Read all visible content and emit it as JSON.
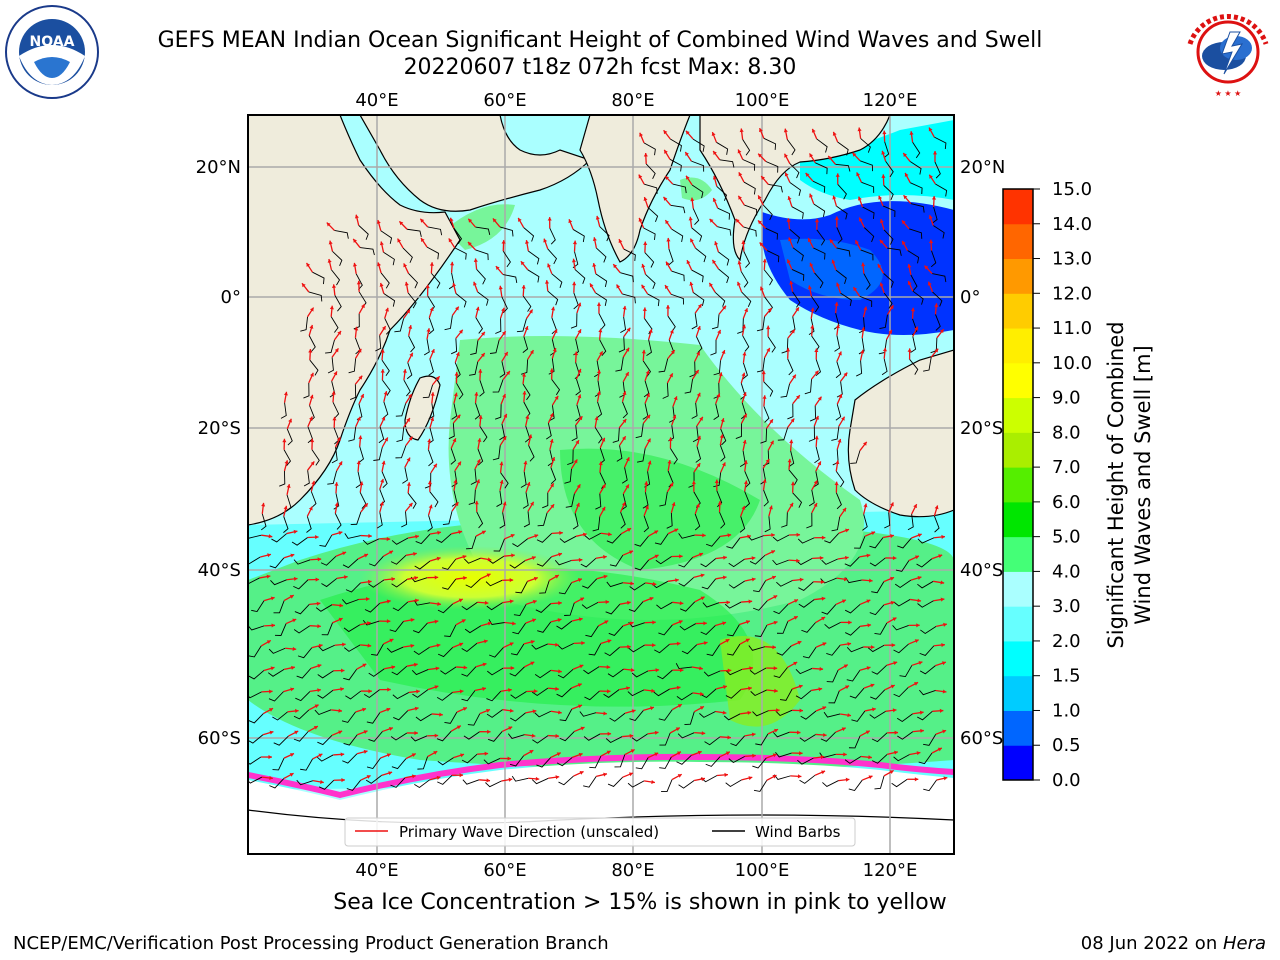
{
  "header": {
    "title_line1": "GEFS MEAN Indian Ocean Significant Height of Combined Wind Waves and Swell",
    "title_line2": "20220607 t18z 072h fcst   Max: 8.30"
  },
  "map": {
    "lon_labels": [
      "40°E",
      "60°E",
      "80°E",
      "100°E",
      "120°E"
    ],
    "lat_labels": [
      "20°N",
      "0°",
      "20°S",
      "40°S",
      "60°S"
    ],
    "colors": {
      "land": "#efecdc",
      "sea_ice": "#ffffff",
      "ice_edge": "#ff33cc",
      "grid": "#aaaaaa",
      "wave_arrow": "#ee1111",
      "wind_barb": "#000000"
    },
    "regions": [
      {
        "name": "light-cyan-band",
        "height_m": 2.0
      },
      {
        "name": "southern-ocean-green",
        "height_m": 4.0
      },
      {
        "name": "storm-core-yellow",
        "height_m": 8.3
      },
      {
        "name": "indonesia-seas-blue",
        "height_m": 0.5
      }
    ]
  },
  "legend": {
    "wave_label": "Primary Wave Direction (unscaled)",
    "wind_label": "Wind Barbs"
  },
  "colorbar": {
    "title_line1": "Significant Height of Combined",
    "title_line2": "Wind Waves and Swell [m]",
    "ticks": [
      "0.0",
      "0.5",
      "1.0",
      "1.5",
      "2.0",
      "3.0",
      "4.0",
      "5.0",
      "6.0",
      "7.0",
      "8.0",
      "9.0",
      "10.0",
      "11.0",
      "12.0",
      "13.0",
      "14.0",
      "15.0"
    ],
    "colors": [
      "#0000ff",
      "#0066ff",
      "#00ccff",
      "#00ffff",
      "#66ffff",
      "#aaffff",
      "#44ff77",
      "#00e600",
      "#55ee00",
      "#aaee00",
      "#ccff00",
      "#ffff00",
      "#ffee00",
      "#ffcc00",
      "#ff9900",
      "#ff6600",
      "#ff3300",
      "#ff0000"
    ]
  },
  "note": "Sea Ice Concentration > 15% is shown in pink to yellow",
  "footer": {
    "left": "NCEP/EMC/Verification Post Processing Product Generation Branch",
    "right_prefix": "08 Jun 2022 on ",
    "right_host": "Hera"
  }
}
